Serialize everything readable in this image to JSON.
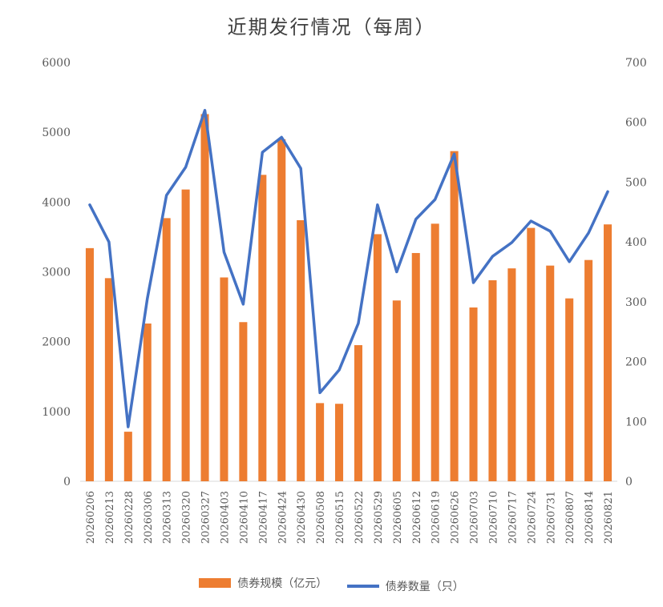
{
  "chart_data": {
    "type": "bar",
    "title": "近期发行情况（每周）",
    "categories": [
      "20260206",
      "20260213",
      "20260228",
      "20260306",
      "20260313",
      "20260320",
      "20260327",
      "20260403",
      "20260410",
      "20260417",
      "20260424",
      "20260430",
      "20260508",
      "20260515",
      "20260522",
      "20260529",
      "20260605",
      "20260612",
      "20260619",
      "20260626",
      "20260703",
      "20260710",
      "20260717",
      "20260724",
      "20260731",
      "20260807",
      "20260814",
      "20260821"
    ],
    "series": [
      {
        "name": "债券规模（亿元）",
        "type": "bar",
        "axis": "left",
        "color": "#ED7D31",
        "values": [
          3340,
          2910,
          710,
          2260,
          3770,
          4180,
          5260,
          2920,
          2280,
          4390,
          4900,
          3740,
          1120,
          1110,
          1950,
          3540,
          2590,
          3270,
          3690,
          4730,
          2490,
          2880,
          3050,
          3630,
          3090,
          2620,
          3170,
          3680
        ]
      },
      {
        "name": "债券数量（只）",
        "type": "line",
        "axis": "right",
        "color": "#4472C4",
        "values": [
          462,
          400,
          91,
          305,
          478,
          525,
          620,
          383,
          296,
          550,
          575,
          523,
          148,
          186,
          264,
          462,
          350,
          438,
          471,
          547,
          332,
          376,
          399,
          435,
          418,
          367,
          415,
          484
        ]
      }
    ],
    "y_left": {
      "ylim": [
        0,
        6000
      ],
      "ticks": [
        "0",
        "1000",
        "2000",
        "3000",
        "4000",
        "5000",
        "6000"
      ]
    },
    "y_right": {
      "ylim": [
        0,
        700
      ],
      "ticks": [
        "0",
        "100",
        "200",
        "300",
        "400",
        "500",
        "600",
        "700"
      ]
    },
    "grid": false,
    "legend_position": "bottom"
  },
  "legend": {
    "bar_label": "债券规模（亿元）",
    "line_label": "债券数量（只）"
  }
}
